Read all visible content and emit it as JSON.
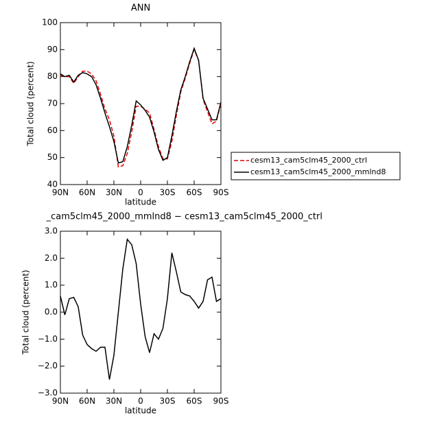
{
  "chart_data": [
    {
      "type": "line",
      "title": "ANN",
      "xlabel": "latitude",
      "ylabel": "Total cloud (percent)",
      "x": [
        90,
        85,
        80,
        75,
        70,
        65,
        60,
        55,
        50,
        45,
        40,
        35,
        30,
        25,
        20,
        15,
        10,
        5,
        0,
        -5,
        -10,
        -15,
        -20,
        -25,
        -30,
        -35,
        -40,
        -45,
        -50,
        -55,
        -60,
        -65,
        -70,
        -75,
        -80,
        -85,
        -90
      ],
      "xlim": [
        90,
        -90
      ],
      "xticks": [
        {
          "value": 90,
          "label": "90N"
        },
        {
          "value": 60,
          "label": "60N"
        },
        {
          "value": 30,
          "label": "30N"
        },
        0,
        {
          "value": -30,
          "label": "30S"
        },
        {
          "value": -60,
          "label": "60S"
        },
        {
          "value": -90,
          "label": "90S"
        }
      ],
      "ylim": [
        40,
        100
      ],
      "yticks": [
        40,
        50,
        60,
        70,
        80,
        90,
        100
      ],
      "legend": "outside right",
      "series": [
        {
          "name": "cesm13_cam5clm45_2000_ctrl",
          "color": "#e00000",
          "dash": true,
          "values": [
            80.5,
            80,
            80,
            77.5,
            80,
            82,
            82,
            81,
            78.5,
            73.5,
            68,
            64,
            58,
            46.5,
            47,
            51.5,
            59.5,
            69,
            69,
            68,
            66.5,
            60.5,
            54,
            49.5,
            49.5,
            56,
            65.5,
            74.3,
            79.4,
            85,
            90,
            86,
            71.5,
            67,
            62.5,
            63.5,
            70
          ]
        },
        {
          "name": "cesm13_cam5clm45_2000_mmlnd8",
          "color": "#000000",
          "dash": false,
          "values": [
            81,
            80,
            80.5,
            78,
            80.5,
            81.5,
            81,
            80,
            77,
            72,
            66.5,
            61.5,
            56,
            48,
            48.5,
            54,
            62,
            71,
            69.5,
            67.5,
            65,
            59.5,
            53,
            49,
            50,
            58,
            67,
            75,
            80,
            85.5,
            90.5,
            86,
            72,
            68,
            64,
            64,
            70.5
          ]
        }
      ]
    },
    {
      "type": "line",
      "title": "_cam5clm45_2000_mmlnd8 − cesm13_cam5clm45_2000_ctrl",
      "xlabel": "latitude",
      "ylabel": "Total cloud (percent)",
      "x": [
        90,
        85,
        80,
        75,
        70,
        65,
        60,
        55,
        50,
        45,
        40,
        35,
        30,
        25,
        20,
        15,
        10,
        5,
        0,
        -5,
        -10,
        -15,
        -20,
        -25,
        -30,
        -35,
        -40,
        -45,
        -50,
        -55,
        -60,
        -65,
        -70,
        -75,
        -80,
        -85,
        -90
      ],
      "xlim": [
        90,
        -90
      ],
      "xticks": [
        {
          "value": 90,
          "label": "90N"
        },
        {
          "value": 60,
          "label": "60N"
        },
        {
          "value": 30,
          "label": "30N"
        },
        0,
        {
          "value": -30,
          "label": "30S"
        },
        {
          "value": -60,
          "label": "60S"
        },
        {
          "value": -90,
          "label": "90S"
        }
      ],
      "ylim": [
        -3,
        3
      ],
      "yticks": [
        {
          "value": -3,
          "label": "−3.0"
        },
        {
          "value": -2,
          "label": "−2.0"
        },
        {
          "value": -1,
          "label": "−1.0"
        },
        {
          "value": 0,
          "label": "0.0"
        },
        {
          "value": 1,
          "label": "1.0"
        },
        {
          "value": 2,
          "label": "2.0"
        },
        {
          "value": 3,
          "label": "3.0"
        }
      ],
      "series": [
        {
          "color": "#000000",
          "dash": false,
          "values": [
            0.6,
            -0.1,
            0.5,
            0.55,
            0.2,
            -0.85,
            -1.2,
            -1.35,
            -1.45,
            -1.3,
            -1.3,
            -2.5,
            -1.6,
            0.0,
            1.6,
            2.7,
            2.5,
            1.8,
            0.3,
            -0.9,
            -1.5,
            -0.8,
            -1.0,
            -0.6,
            0.5,
            2.2,
            1.5,
            0.75,
            0.65,
            0.6,
            0.4,
            0.15,
            0.4,
            1.2,
            1.3,
            0.4,
            0.5
          ]
        }
      ]
    }
  ]
}
